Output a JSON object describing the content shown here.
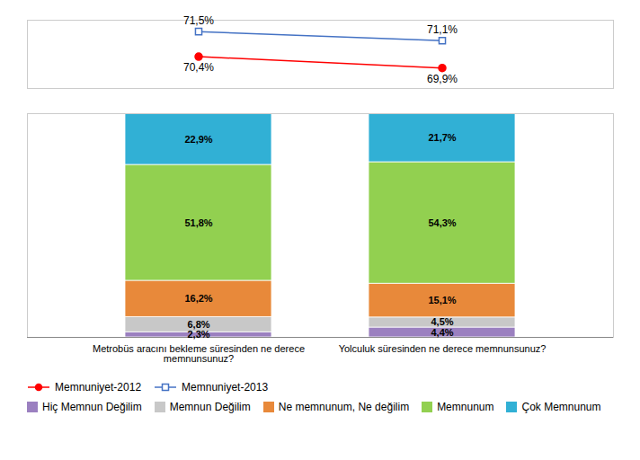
{
  "chart_data": [
    {
      "type": "line",
      "categories": [
        "Metrobüs aracını bekleme süresinden ne derece\nmemnunsunuz?",
        "Yolculuk süresinden ne derece memnunsunuz?"
      ],
      "series": [
        {
          "name": "Memnuniyet-2012",
          "color": "#FF0000",
          "marker": "circle",
          "values": [
            70.4,
            69.9
          ],
          "value_labels": [
            "70,4%",
            "69,9%"
          ]
        },
        {
          "name": "Memnuniyet-2013",
          "color": "#4472C4",
          "marker": "square",
          "values": [
            71.5,
            71.1
          ],
          "value_labels": [
            "71,5%",
            "71,1%"
          ]
        }
      ],
      "ylim": [
        69,
        72
      ],
      "tick_labels": false,
      "data_labels": true,
      "legend": "bottom"
    },
    {
      "type": "bar",
      "stacked": true,
      "categories": [
        "Metrobüs aracını bekleme süresinden ne derece\nmemnunsunuz?",
        "Yolculuk süresinden ne derece memnunsunuz?"
      ],
      "series": [
        {
          "name": "Hiç Memnun Değilim",
          "color": "#9B80C0",
          "values": [
            2.3,
            4.4
          ],
          "value_labels": [
            "2,3%",
            "4,4%"
          ]
        },
        {
          "name": "Memnun Değilim",
          "color": "#C8C8C8",
          "values": [
            6.8,
            4.5
          ],
          "value_labels": [
            "6,8%",
            "4,5%"
          ]
        },
        {
          "name": "Ne memnunum, Ne değilim",
          "color": "#E8893A",
          "values": [
            16.2,
            15.1
          ],
          "value_labels": [
            "16,2%",
            "15,1%"
          ]
        },
        {
          "name": "Memnunum",
          "color": "#92D050",
          "values": [
            51.8,
            54.3
          ],
          "value_labels": [
            "51,8%",
            "54,3%"
          ]
        },
        {
          "name": "Çok Memnunum",
          "color": "#31B0D5",
          "values": [
            22.9,
            21.7
          ],
          "value_labels": [
            "22,9%",
            "21,7%"
          ]
        }
      ],
      "ylim": [
        0,
        100
      ],
      "tick_labels": "x",
      "data_labels": true,
      "legend": "bottom"
    }
  ]
}
